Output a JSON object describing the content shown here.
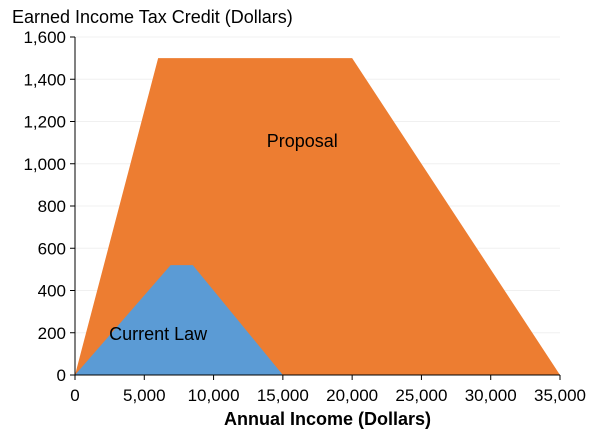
{
  "chart_data": {
    "type": "area",
    "title": "",
    "ylabel": "Earned Income Tax Credit (Dollars)",
    "xlabel": "Annual Income (Dollars)",
    "xlim": [
      0,
      35000
    ],
    "ylim": [
      0,
      1600
    ],
    "x_ticks": [
      "0",
      "5,000",
      "10,000",
      "15,000",
      "20,000",
      "25,000",
      "30,000",
      "35,000"
    ],
    "y_ticks": [
      "0",
      "200",
      "400",
      "600",
      "800",
      "1,000",
      "1,200",
      "1,400",
      "1,600"
    ],
    "grid": true,
    "legend": "none",
    "series": [
      {
        "name": "Proposal",
        "color": "#ED7D31",
        "points": [
          [
            0,
            0
          ],
          [
            6000,
            1500
          ],
          [
            20000,
            1500
          ],
          [
            35000,
            0
          ]
        ]
      },
      {
        "name": "Current Law",
        "color": "#5B9BD5",
        "points": [
          [
            0,
            0
          ],
          [
            6900,
            520
          ],
          [
            8500,
            520
          ],
          [
            15000,
            0
          ]
        ]
      }
    ],
    "annotations": [
      {
        "text": "Proposal",
        "x": 16400,
        "y": 1080
      },
      {
        "text": "Current Law",
        "x": 6000,
        "y": 165
      }
    ]
  }
}
